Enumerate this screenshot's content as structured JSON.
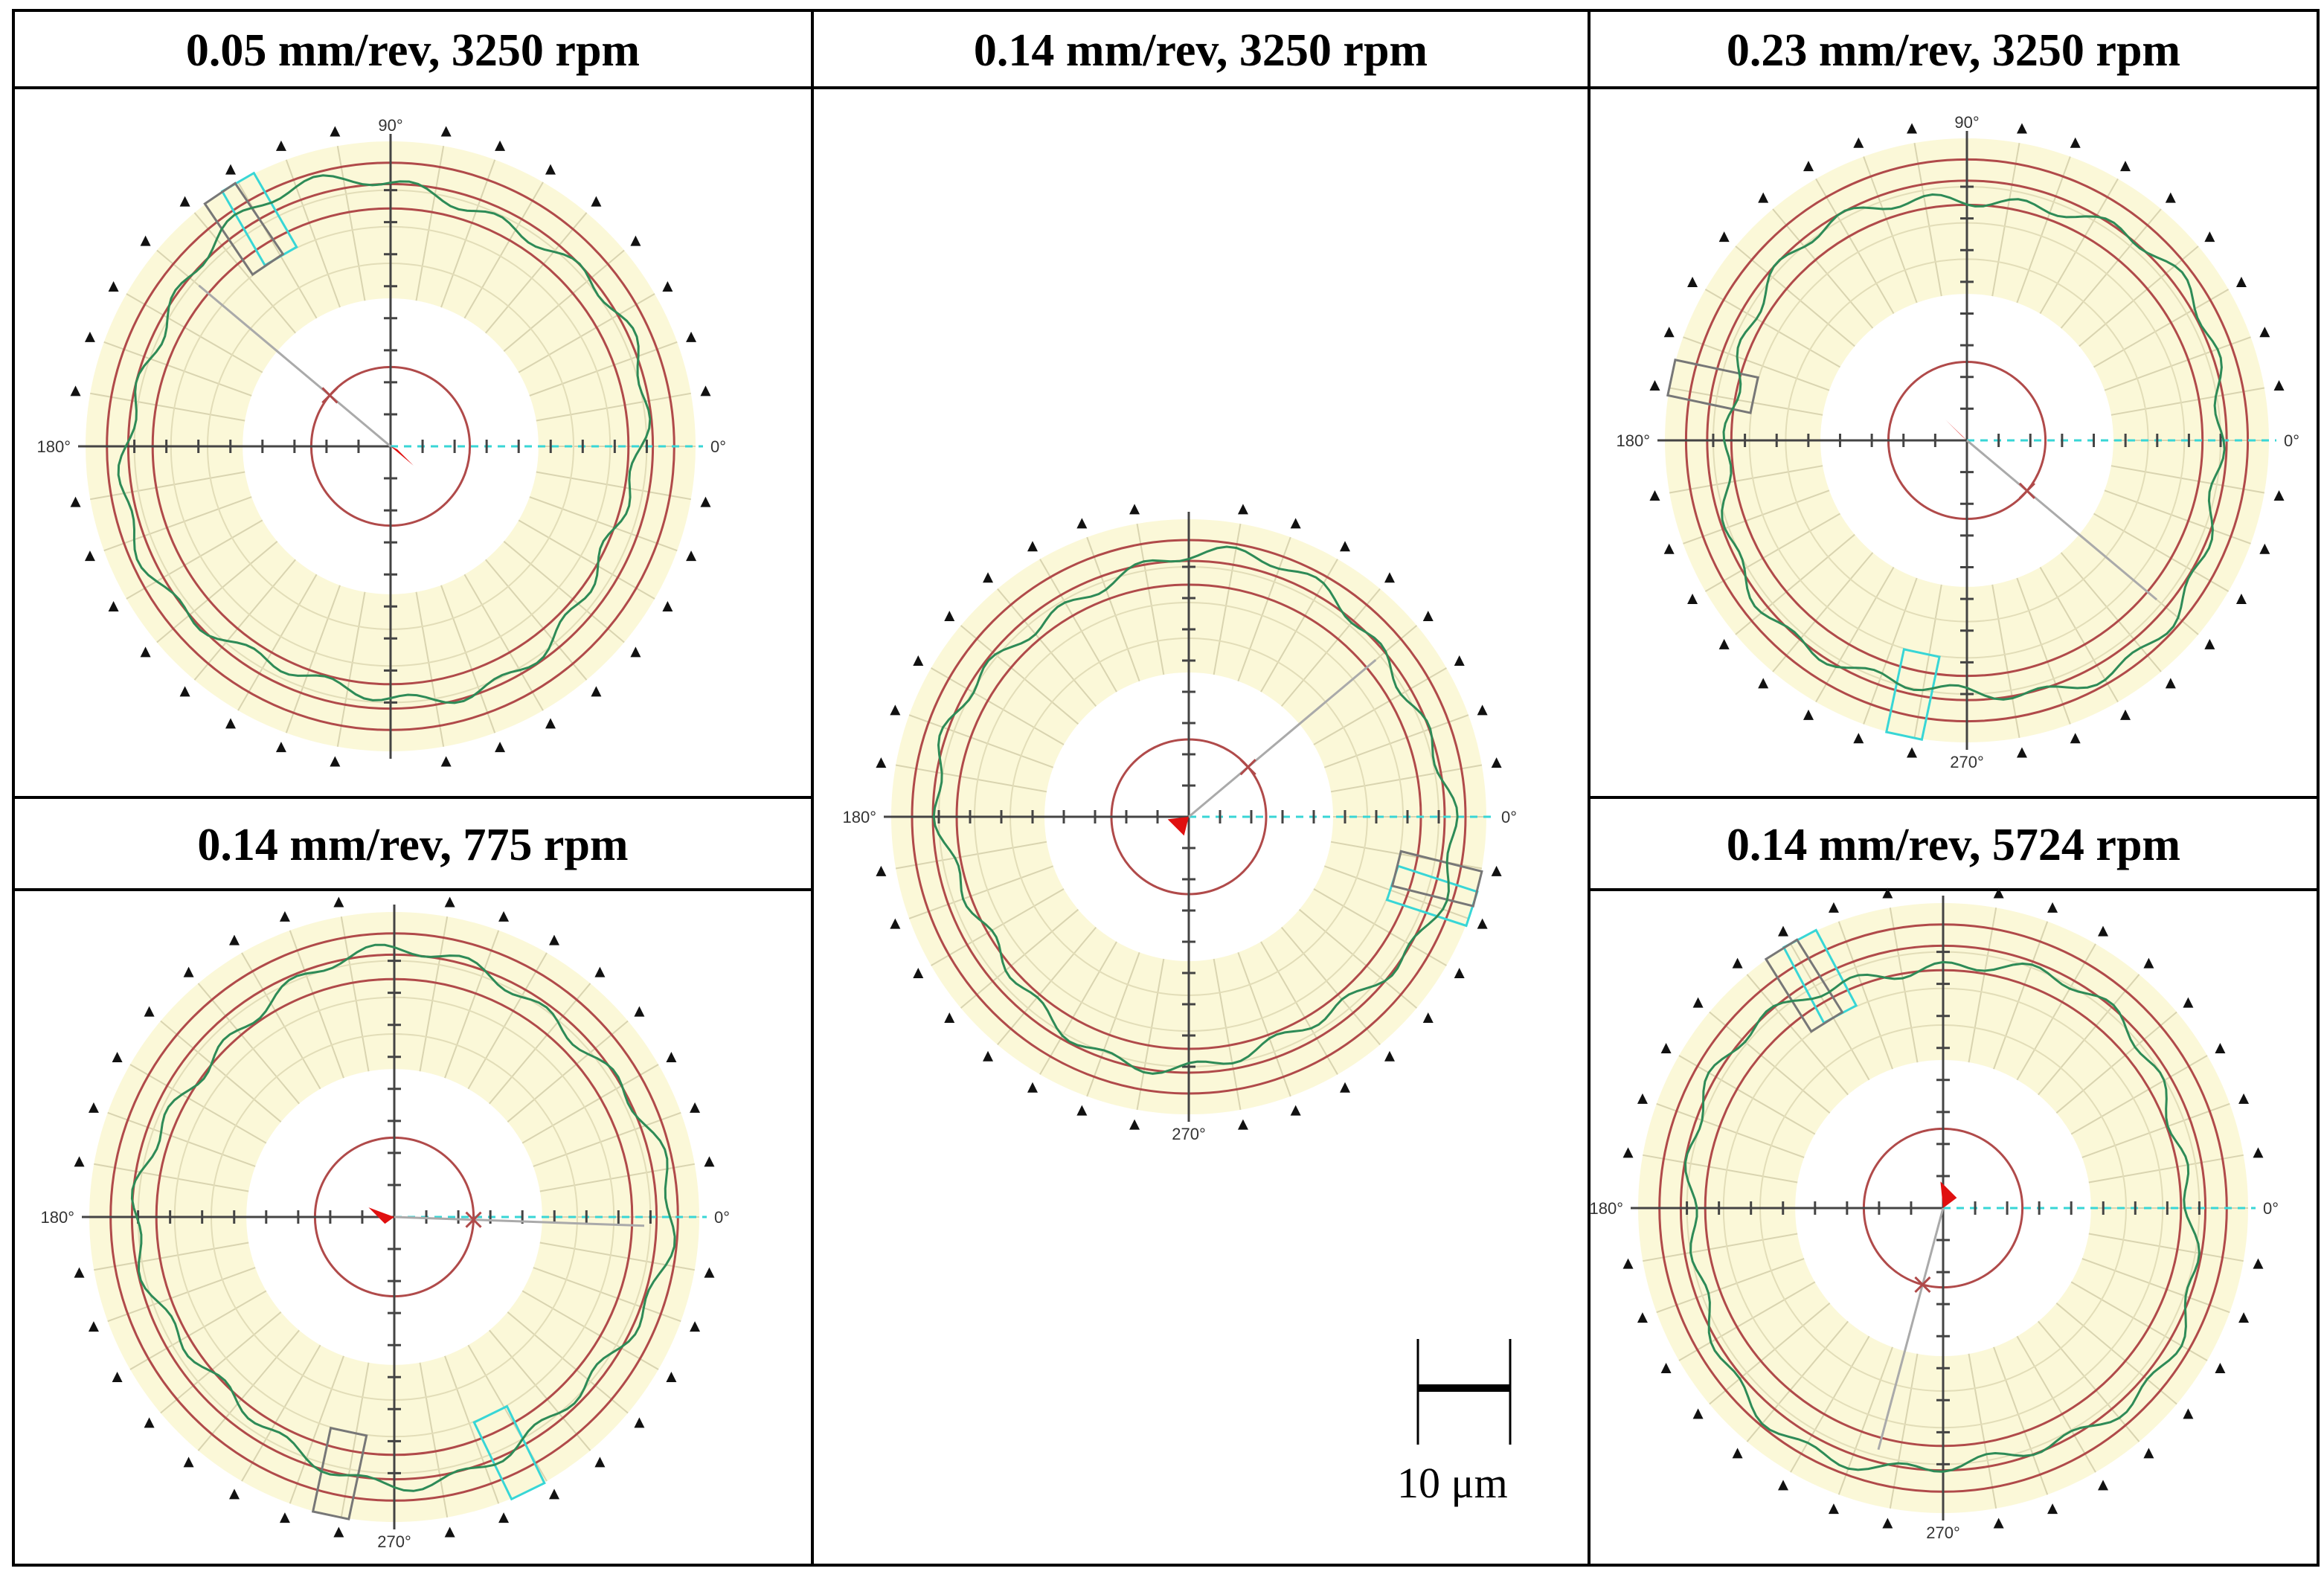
{
  "figure": {
    "panels": [
      {
        "id": "p1",
        "title": "0.05 mm/rev, 3250 rpm",
        "angle_labels": {
          "right": "0°",
          "top": "90°",
          "left": "180°",
          "bottom": ""
        },
        "eccentricity_angle_deg": 140,
        "highlight_angle_deg": 120,
        "secondary_box_angle_deg": 120
      },
      {
        "id": "p2",
        "title": "0.14 mm/rev, 3250 rpm",
        "angle_labels": {
          "right": "0°",
          "top": "",
          "left": "180°",
          "bottom": "270°"
        },
        "eccentricity_angle_deg": 40,
        "highlight_angle_deg": 342,
        "secondary_box_angle_deg": 342
      },
      {
        "id": "p3",
        "title": "0.23 mm/rev, 3250 rpm",
        "angle_labels": {
          "right": "0°",
          "top": "90°",
          "left": "180°",
          "bottom": "270°"
        },
        "eccentricity_angle_deg": 320,
        "highlight_angle_deg": 258,
        "secondary_box_angle_deg": 168
      },
      {
        "id": "p4",
        "title": "0.14 mm/rev, 775 rpm",
        "angle_labels": {
          "right": "0°",
          "top": "",
          "left": "180°",
          "bottom": "270°"
        },
        "eccentricity_angle_deg": 358,
        "highlight_angle_deg": 296,
        "secondary_box_angle_deg": 258
      },
      {
        "id": "p5",
        "title": "0.14 mm/rev, 5724 rpm",
        "angle_labels": {
          "right": "0°",
          "top": "",
          "left": "180°",
          "bottom": "270°"
        },
        "eccentricity_angle_deg": 255,
        "highlight_angle_deg": 118,
        "secondary_box_angle_deg": 118
      }
    ],
    "scale_bar": {
      "label": "10 μm",
      "value_um": 10
    },
    "colors": {
      "band": "#fbf8d8",
      "reference_circle": "#b04a4a",
      "profile": "#2e8b57",
      "highlight": "#38d6d6",
      "arrow": "#e01010",
      "axis": "#444444",
      "border": "#000000"
    }
  }
}
